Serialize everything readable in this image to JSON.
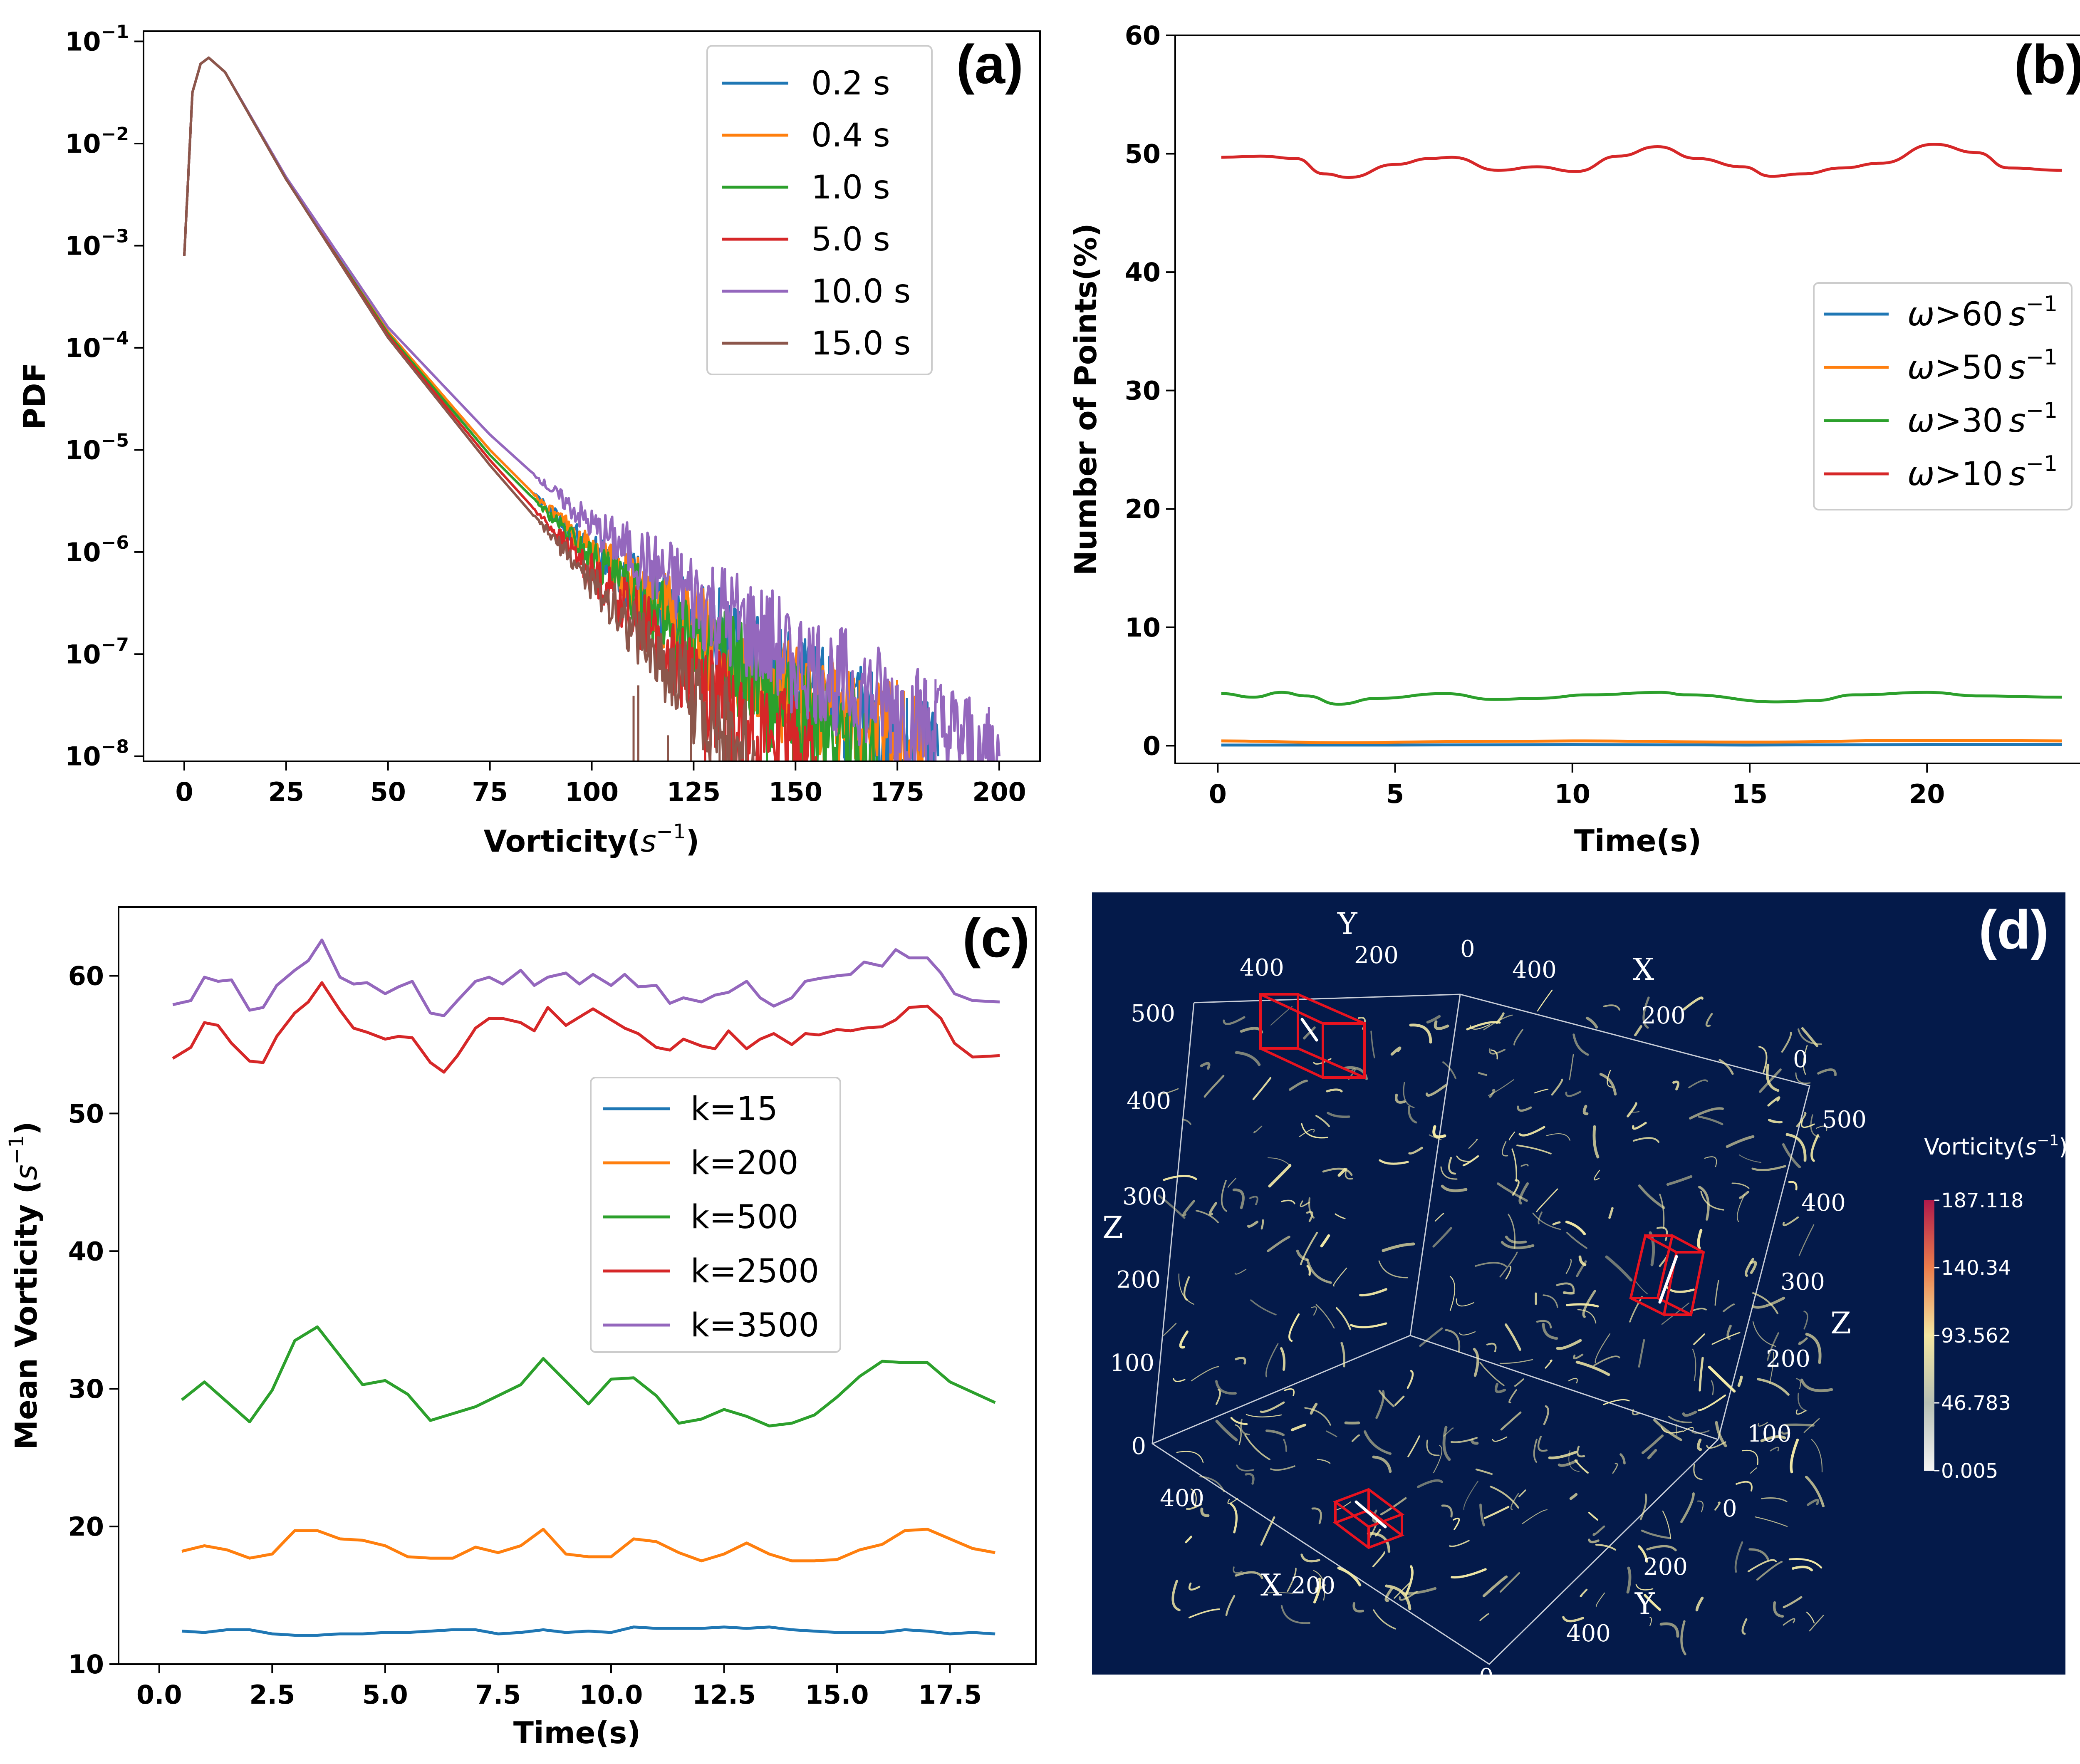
{
  "colors": {
    "blue": "#1f77b4",
    "orange": "#ff7f0e",
    "green": "#2ca02c",
    "red": "#d62728",
    "purple": "#9467bd",
    "brown": "#8c564b",
    "navy": "#041a4a"
  },
  "chart_data": [
    {
      "panel": "(a)",
      "type": "line",
      "xlabel": "Vorticity",
      "xlabel_unit": "s",
      "xlabel_exp": "−1",
      "ylabel": "PDF",
      "yscale": "log",
      "xlim": [
        -10,
        210
      ],
      "ylim_log10": [
        -8.05,
        -0.9
      ],
      "x_ticks": [
        "0",
        "25",
        "50",
        "75",
        "100",
        "125",
        "150",
        "175",
        "200"
      ],
      "x_tick_values": [
        0,
        25,
        50,
        75,
        100,
        125,
        150,
        175,
        200
      ],
      "y_ticks": [
        {
          "base": "10",
          "exp": "−1",
          "v": -1
        },
        {
          "base": "10",
          "exp": "−2",
          "v": -2
        },
        {
          "base": "10",
          "exp": "−3",
          "v": -3
        },
        {
          "base": "10",
          "exp": "−4",
          "v": -4
        },
        {
          "base": "10",
          "exp": "−5",
          "v": -5
        },
        {
          "base": "10",
          "exp": "−6",
          "v": -6
        },
        {
          "base": "10",
          "exp": "−7",
          "v": -7
        },
        {
          "base": "10",
          "exp": "−8",
          "v": -8
        }
      ],
      "legend": [
        "0.2 s",
        "0.4 s",
        "1.0 s",
        "5.0 s",
        "10.0 s",
        "15.0 s"
      ],
      "series": [
        {
          "name": "0.2 s",
          "color": "#1f77b4",
          "x": [
            0,
            2,
            4,
            6,
            10,
            25,
            50,
            75,
            100,
            125,
            150,
            165,
            175,
            185
          ],
          "log10_y": [
            -3.1,
            -1.5,
            -1.22,
            -1.16,
            -1.3,
            -2.35,
            -3.85,
            -5.0,
            -6.0,
            -6.75,
            -7.35,
            -7.65,
            -7.8,
            -8.0
          ]
        },
        {
          "name": "0.4 s",
          "color": "#ff7f0e",
          "x": [
            0,
            2,
            4,
            6,
            10,
            25,
            50,
            75,
            100,
            125,
            150,
            165,
            175,
            182
          ],
          "log10_y": [
            -3.1,
            -1.5,
            -1.22,
            -1.16,
            -1.3,
            -2.35,
            -3.84,
            -5.0,
            -6.0,
            -6.8,
            -7.4,
            -7.7,
            -7.85,
            -8.0
          ]
        },
        {
          "name": "1.0 s",
          "color": "#2ca02c",
          "x": [
            0,
            2,
            4,
            6,
            10,
            25,
            50,
            75,
            100,
            125,
            145,
            160,
            170
          ],
          "log10_y": [
            -3.1,
            -1.5,
            -1.22,
            -1.16,
            -1.3,
            -2.35,
            -3.86,
            -5.05,
            -6.05,
            -6.9,
            -7.45,
            -7.8,
            -8.0
          ]
        },
        {
          "name": "5.0 s",
          "color": "#d62728",
          "x": [
            0,
            2,
            4,
            6,
            10,
            25,
            50,
            75,
            100,
            120,
            135,
            145,
            155
          ],
          "log10_y": [
            -3.1,
            -1.5,
            -1.22,
            -1.16,
            -1.3,
            -2.35,
            -3.88,
            -5.1,
            -6.2,
            -7.0,
            -7.6,
            -7.85,
            -8.0
          ]
        },
        {
          "name": "10.0 s",
          "color": "#9467bd",
          "x": [
            0,
            2,
            4,
            6,
            10,
            25,
            50,
            75,
            100,
            125,
            150,
            170,
            185,
            200
          ],
          "log10_y": [
            -3.1,
            -1.5,
            -1.22,
            -1.16,
            -1.3,
            -2.33,
            -3.8,
            -4.85,
            -5.75,
            -6.45,
            -7.05,
            -7.45,
            -7.75,
            -8.0
          ]
        },
        {
          "name": "15.0 s",
          "color": "#8c564b",
          "x": [
            0,
            2,
            4,
            6,
            10,
            25,
            50,
            75,
            100,
            120,
            130,
            140
          ],
          "log10_y": [
            -3.1,
            -1.5,
            -1.22,
            -1.16,
            -1.3,
            -2.35,
            -3.9,
            -5.15,
            -6.3,
            -7.2,
            -7.65,
            -8.0
          ]
        }
      ]
    },
    {
      "panel": "(b)",
      "type": "line",
      "xlabel": "Time(s)",
      "ylabel": "Number of Points(%)",
      "xlim": [
        -1.2,
        24.9
      ],
      "ylim": [
        -1.5,
        60
      ],
      "x_ticks": [
        "0",
        "5",
        "10",
        "15",
        "20"
      ],
      "x_tick_values": [
        0,
        5,
        10,
        15,
        20
      ],
      "y_ticks": [
        "0",
        "10",
        "20",
        "30",
        "40",
        "50",
        "60"
      ],
      "y_tick_values": [
        0,
        10,
        20,
        30,
        40,
        50,
        60
      ],
      "legend": [
        {
          "omega": "ω",
          "rel": ">60",
          "unit": "s",
          "exp": "−1"
        },
        {
          "omega": "ω",
          "rel": ">50",
          "unit": "s",
          "exp": "−1"
        },
        {
          "omega": "ω",
          "rel": ">30",
          "unit": "s",
          "exp": "−1"
        },
        {
          "omega": "ω",
          "rel": ">10",
          "unit": "s",
          "exp": "−1"
        }
      ],
      "series": [
        {
          "name": "ω>60 s−1",
          "color": "#1f77b4",
          "x": [
            0.1,
            5,
            10,
            15,
            20,
            23.8
          ],
          "y": [
            0.05,
            0.05,
            0.1,
            0.05,
            0.1,
            0.1
          ]
        },
        {
          "name": "ω>50 s−1",
          "color": "#ff7f0e",
          "x": [
            0.1,
            3.5,
            7,
            10,
            15,
            20,
            23.8
          ],
          "y": [
            0.4,
            0.25,
            0.35,
            0.4,
            0.3,
            0.45,
            0.4
          ]
        },
        {
          "name": "ω>30 s−1",
          "color": "#2ca02c",
          "x": [
            0.1,
            1,
            1.8,
            2.5,
            3.4,
            4.5,
            6.4,
            7.8,
            9,
            10.5,
            12.5,
            13.2,
            15.8,
            16.8,
            18,
            20,
            21.5,
            23.8
          ],
          "y": [
            4.4,
            4.1,
            4.5,
            4.2,
            3.5,
            4.0,
            4.4,
            3.9,
            4.0,
            4.3,
            4.5,
            4.3,
            3.7,
            3.8,
            4.3,
            4.5,
            4.2,
            4.1
          ]
        },
        {
          "name": "ω>10 s−1",
          "color": "#d62728",
          "x": [
            0.1,
            1.2,
            2.2,
            3.0,
            3.7,
            5.0,
            6.0,
            6.6,
            7.9,
            9.0,
            10.1,
            11.3,
            12.4,
            13.5,
            14.8,
            15.6,
            16.5,
            17.6,
            18.7,
            20.2,
            21.4,
            22.3,
            23.8
          ],
          "y": [
            49.7,
            49.8,
            49.6,
            48.3,
            48.0,
            49.1,
            49.6,
            49.7,
            48.6,
            48.9,
            48.5,
            49.8,
            50.6,
            49.6,
            48.9,
            48.1,
            48.3,
            48.8,
            49.2,
            50.8,
            50.1,
            48.8,
            48.6
          ]
        }
      ]
    },
    {
      "panel": "(c)",
      "type": "line",
      "xlabel": "Time(s)",
      "ylabel": "Mean Vorticity",
      "ylabel_unit": "s",
      "ylabel_exp": "−1",
      "xlim": [
        -0.9,
        19.4
      ],
      "ylim": [
        10,
        65
      ],
      "x_ticks": [
        "0.0",
        "2.5",
        "5.0",
        "7.5",
        "10.0",
        "12.5",
        "15.0",
        "17.5"
      ],
      "x_tick_values": [
        0,
        2.5,
        5,
        7.5,
        10,
        12.5,
        15,
        17.5
      ],
      "y_ticks": [
        "10",
        "20",
        "30",
        "40",
        "50",
        "60"
      ],
      "y_tick_values": [
        10,
        20,
        30,
        40,
        50,
        60
      ],
      "legend": [
        "k=15",
        "k=200",
        "k=500",
        "k=2500",
        "k=3500"
      ],
      "series": [
        {
          "name": "k=15",
          "color": "#1f77b4",
          "x": [
            0.5,
            1,
            1.5,
            2,
            2.5,
            3,
            3.5,
            4,
            4.5,
            5,
            5.5,
            6,
            6.5,
            7,
            7.5,
            8,
            8.5,
            9,
            9.5,
            10,
            10.5,
            11,
            11.5,
            12,
            12.5,
            13,
            13.5,
            14,
            14.5,
            15,
            15.5,
            16,
            16.5,
            17,
            17.5,
            18,
            18.5
          ],
          "y": [
            12.4,
            12.3,
            12.5,
            12.5,
            12.2,
            12.1,
            12.1,
            12.2,
            12.2,
            12.3,
            12.3,
            12.4,
            12.5,
            12.5,
            12.2,
            12.3,
            12.5,
            12.3,
            12.4,
            12.3,
            12.7,
            12.6,
            12.6,
            12.6,
            12.7,
            12.6,
            12.7,
            12.5,
            12.4,
            12.3,
            12.3,
            12.3,
            12.5,
            12.4,
            12.2,
            12.3,
            12.2
          ]
        },
        {
          "name": "k=200",
          "color": "#ff7f0e",
          "x": [
            0.5,
            1,
            1.5,
            2,
            2.5,
            3,
            3.5,
            4,
            4.5,
            5,
            5.5,
            6,
            6.5,
            7,
            7.5,
            8,
            8.5,
            9,
            9.5,
            10,
            10.5,
            11,
            11.5,
            12,
            12.5,
            13,
            13.5,
            14,
            14.5,
            15,
            15.5,
            16,
            16.5,
            17,
            17.5,
            18,
            18.5
          ],
          "y": [
            18.2,
            18.6,
            18.3,
            17.7,
            18.0,
            19.7,
            19.7,
            19.1,
            19.0,
            18.6,
            17.8,
            17.7,
            17.7,
            18.5,
            18.1,
            18.6,
            19.8,
            18.0,
            17.8,
            17.8,
            19.1,
            18.9,
            18.1,
            17.5,
            18.0,
            18.8,
            18.0,
            17.5,
            17.5,
            17.6,
            18.3,
            18.7,
            19.7,
            19.8,
            19.1,
            18.4,
            18.1
          ]
        },
        {
          "name": "k=500",
          "color": "#2ca02c",
          "x": [
            0.5,
            1,
            2,
            2.5,
            3,
            3.5,
            4.5,
            5,
            5.5,
            6,
            7,
            8,
            8.5,
            9.5,
            10,
            10.5,
            11,
            11.5,
            12,
            12.5,
            13,
            13.5,
            14,
            14.5,
            15,
            15.5,
            16,
            16.5,
            17,
            17.5,
            18.5
          ],
          "y": [
            29.2,
            30.5,
            27.6,
            29.9,
            33.5,
            34.5,
            30.3,
            30.6,
            29.6,
            27.7,
            28.7,
            30.3,
            32.2,
            28.9,
            30.7,
            30.8,
            29.5,
            27.5,
            27.8,
            28.5,
            28.0,
            27.3,
            27.5,
            28.1,
            29.4,
            30.9,
            32.0,
            31.9,
            31.9,
            30.5,
            29.0
          ]
        },
        {
          "name": "k=2500",
          "color": "#d62728",
          "x": [
            0.3,
            0.7,
            1,
            1.3,
            1.6,
            2,
            2.3,
            2.6,
            3,
            3.3,
            3.6,
            4,
            4.3,
            4.6,
            5,
            5.3,
            5.6,
            6,
            6.3,
            6.6,
            7,
            7.3,
            7.6,
            8,
            8.3,
            8.6,
            9,
            9.3,
            9.6,
            10,
            10.3,
            10.6,
            11,
            11.3,
            11.6,
            12,
            12.3,
            12.6,
            13,
            13.3,
            13.6,
            14,
            14.3,
            14.6,
            15,
            15.3,
            15.6,
            16,
            16.3,
            16.6,
            17,
            17.3,
            17.6,
            18,
            18.6
          ],
          "y": [
            54.0,
            54.8,
            56.6,
            56.4,
            55.1,
            53.8,
            53.7,
            55.6,
            57.3,
            58.1,
            59.5,
            57.5,
            56.2,
            55.9,
            55.4,
            55.6,
            55.5,
            53.7,
            53.0,
            54.2,
            56.2,
            56.9,
            56.9,
            56.6,
            56.0,
            57.7,
            56.4,
            57.0,
            57.6,
            56.8,
            56.2,
            55.8,
            54.8,
            54.6,
            55.4,
            54.9,
            54.7,
            56.0,
            54.7,
            55.4,
            55.8,
            55.0,
            55.8,
            55.7,
            56.1,
            56.0,
            56.2,
            56.3,
            56.8,
            57.7,
            57.8,
            56.9,
            55.1,
            54.1,
            54.2
          ]
        },
        {
          "name": "k=3500",
          "color": "#9467bd",
          "x": [
            0.3,
            0.7,
            1,
            1.3,
            1.6,
            2,
            2.3,
            2.6,
            3,
            3.3,
            3.6,
            4,
            4.3,
            4.6,
            5,
            5.3,
            5.6,
            6,
            6.3,
            6.6,
            7,
            7.3,
            7.6,
            8,
            8.3,
            8.6,
            9,
            9.3,
            9.6,
            10,
            10.3,
            10.6,
            11,
            11.3,
            11.6,
            12,
            12.3,
            12.6,
            13,
            13.3,
            13.6,
            14,
            14.3,
            14.6,
            15,
            15.3,
            15.6,
            16,
            16.3,
            16.6,
            17,
            17.3,
            17.6,
            18,
            18.6
          ],
          "y": [
            57.9,
            58.2,
            59.9,
            59.6,
            59.7,
            57.5,
            57.7,
            59.3,
            60.4,
            61.1,
            62.6,
            59.9,
            59.4,
            59.5,
            58.7,
            59.2,
            59.6,
            57.3,
            57.1,
            58.2,
            59.6,
            59.9,
            59.4,
            60.4,
            59.3,
            59.9,
            60.2,
            59.4,
            60.1,
            59.3,
            60.1,
            59.2,
            59.3,
            58.0,
            58.4,
            58.1,
            58.6,
            58.8,
            59.6,
            58.4,
            57.8,
            58.4,
            59.6,
            59.8,
            60.0,
            60.1,
            61.0,
            60.7,
            61.9,
            61.3,
            61.3,
            60.2,
            58.7,
            58.2,
            58.1
          ]
        }
      ]
    },
    {
      "panel": "(d)",
      "type": "other",
      "axes": {
        "Y": "Y",
        "X": "X",
        "Z": "Z"
      },
      "tick_labels": {
        "y_top": [
          "400",
          "200",
          "0"
        ],
        "x_top": [
          "400",
          "200",
          "0"
        ],
        "z_left": [
          "500",
          "400",
          "300",
          "200",
          "100",
          "0"
        ],
        "z_right": [
          "500",
          "400",
          "300",
          "200",
          "100",
          "0"
        ],
        "x_bottom": [
          "400",
          "200"
        ],
        "y_bottom": [
          "200",
          "400",
          "0"
        ]
      },
      "colorbar": {
        "title": "Vorticity",
        "unit": "s",
        "exp": "−1",
        "ticks": [
          "187.118",
          "140.34",
          "93.562",
          "46.783",
          "0.005"
        ]
      }
    }
  ]
}
